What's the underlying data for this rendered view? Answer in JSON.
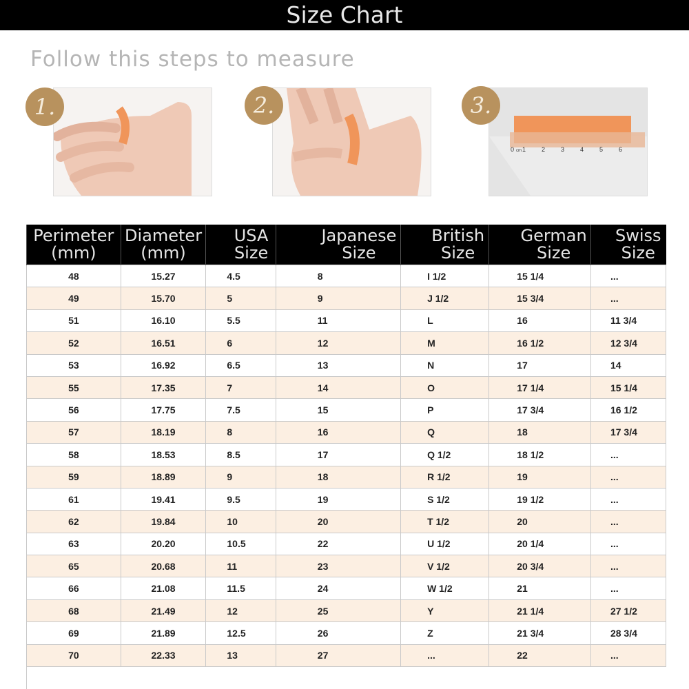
{
  "title": "Size Chart",
  "subtitle": "Follow this steps to measure",
  "steps": [
    {
      "label": "1.",
      "image": "wrap-strip-around-finger"
    },
    {
      "label": "2.",
      "image": "mark-strip-on-finger"
    },
    {
      "label": "3.",
      "image": "measure-strip-with-ruler"
    }
  ],
  "colors": {
    "header_bg": "#000000",
    "badge": "#b8925e",
    "alt_row": "#fcefe2",
    "strip": "#f0955a"
  },
  "table": {
    "headers": [
      [
        "Perimeter",
        "(mm)"
      ],
      [
        "Diameter",
        "(mm)"
      ],
      [
        "USA",
        "Size"
      ],
      [
        "Japanese",
        "Size"
      ],
      [
        "British",
        "Size"
      ],
      [
        "German",
        "Size"
      ],
      [
        "Swiss",
        "Size"
      ]
    ],
    "rows": [
      [
        "48",
        "15.27",
        "4.5",
        "8",
        "I 1/2",
        "15 1/4",
        "..."
      ],
      [
        "49",
        "15.70",
        "5",
        "9",
        "J 1/2",
        "15 3/4",
        "..."
      ],
      [
        "51",
        "16.10",
        "5.5",
        "11",
        "L",
        "16",
        "11 3/4"
      ],
      [
        "52",
        "16.51",
        "6",
        "12",
        "M",
        "16 1/2",
        "12 3/4"
      ],
      [
        "53",
        "16.92",
        "6.5",
        "13",
        "N",
        "17",
        "14"
      ],
      [
        "55",
        "17.35",
        "7",
        "14",
        "O",
        "17 1/4",
        "15 1/4"
      ],
      [
        "56",
        "17.75",
        "7.5",
        "15",
        "P",
        "17 3/4",
        "16 1/2"
      ],
      [
        "57",
        "18.19",
        "8",
        "16",
        "Q",
        "18",
        "17 3/4"
      ],
      [
        "58",
        "18.53",
        "8.5",
        "17",
        "Q 1/2",
        "18 1/2",
        "..."
      ],
      [
        "59",
        "18.89",
        "9",
        "18",
        "R 1/2",
        "19",
        "..."
      ],
      [
        "61",
        "19.41",
        "9.5",
        "19",
        "S 1/2",
        "19 1/2",
        "..."
      ],
      [
        "62",
        "19.84",
        "10",
        "20",
        "T 1/2",
        "20",
        "..."
      ],
      [
        "63",
        "20.20",
        "10.5",
        "22",
        "U 1/2",
        "20 1/4",
        "..."
      ],
      [
        "65",
        "20.68",
        "11",
        "23",
        "V 1/2",
        "20 3/4",
        "..."
      ],
      [
        "66",
        "21.08",
        "11.5",
        "24",
        "W 1/2",
        "21",
        "..."
      ],
      [
        "68",
        "21.49",
        "12",
        "25",
        "Y",
        "21 1/4",
        "27 1/2"
      ],
      [
        "69",
        "21.89",
        "12.5",
        "26",
        "Z",
        "21 3/4",
        "28 3/4"
      ],
      [
        "70",
        "22.33",
        "13",
        "27",
        "...",
        "22",
        "..."
      ]
    ]
  },
  "ruler_labels": [
    "0",
    "cm",
    "1",
    "2",
    "3",
    "4",
    "5",
    "6"
  ]
}
